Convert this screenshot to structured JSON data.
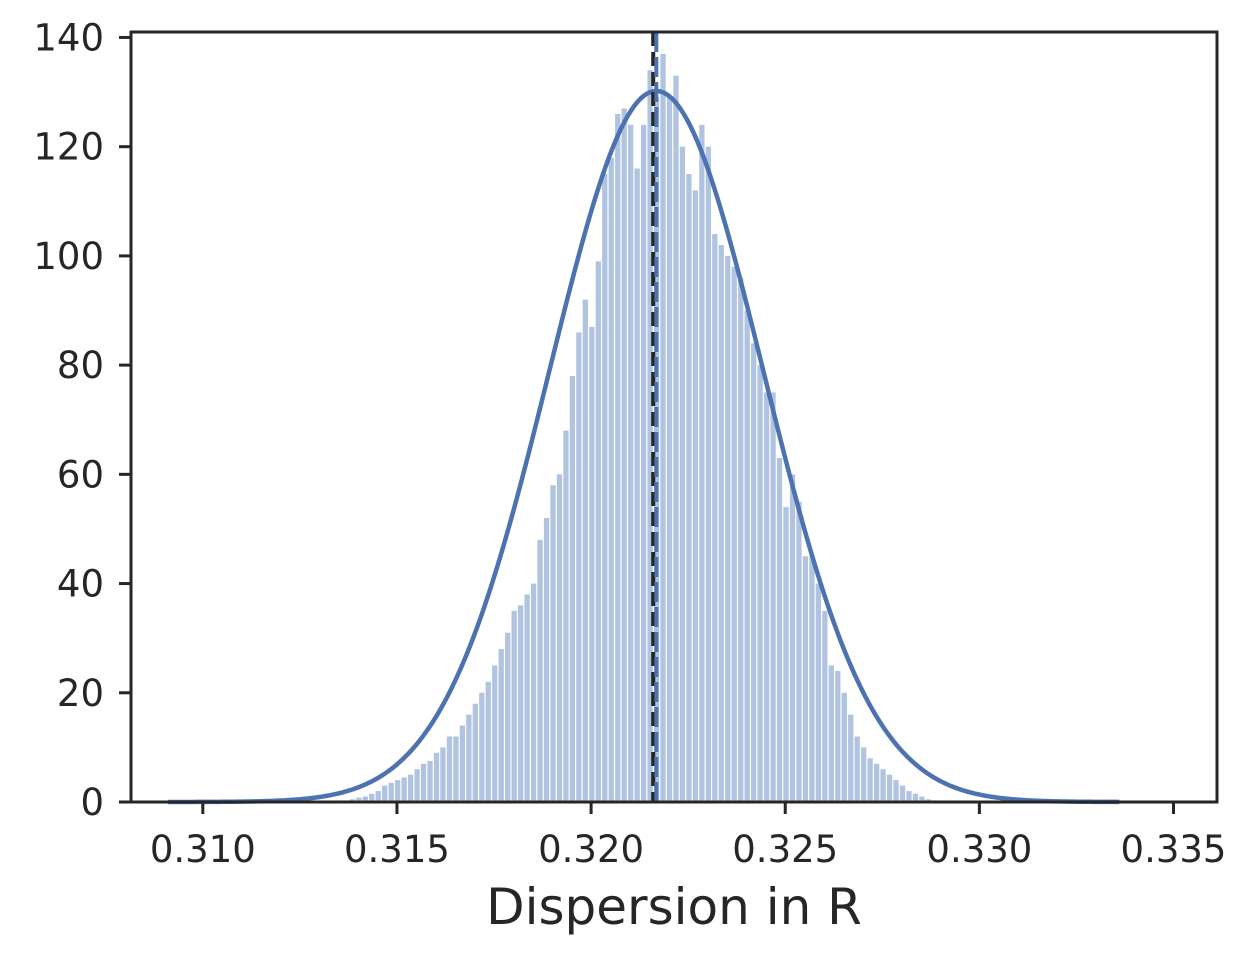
{
  "chart_data": {
    "type": "bar",
    "subtype": "histogram-with-kde",
    "title": "",
    "xlabel": "Dispersion in R",
    "ylabel": "",
    "xlim": [
      0.30815,
      0.33612
    ],
    "ylim": [
      0,
      141
    ],
    "x_ticks": [
      0.31,
      0.315,
      0.32,
      0.325,
      0.33,
      0.335
    ],
    "x_tick_labels": [
      "0.310",
      "0.315",
      "0.320",
      "0.325",
      "0.330",
      "0.335"
    ],
    "y_ticks": [
      0,
      20,
      40,
      60,
      80,
      100,
      120,
      140
    ],
    "y_tick_labels": [
      "0",
      "20",
      "40",
      "60",
      "80",
      "100",
      "120",
      "140"
    ],
    "grid": false,
    "bin_start": 0.3091,
    "bin_width": 0.0001667,
    "counts": [
      0.3,
      0,
      0,
      0,
      0,
      0,
      0,
      0,
      0,
      0,
      0,
      0,
      0,
      0,
      0,
      0,
      0,
      0,
      0,
      0,
      0,
      0,
      0,
      0,
      0,
      0,
      0.3,
      0.3,
      0.5,
      0.8,
      1,
      1.5,
      2,
      3,
      3.5,
      4,
      4.5,
      5,
      6,
      7,
      7.5,
      9,
      10,
      12,
      12,
      14,
      16,
      18,
      20,
      22,
      25,
      28,
      31,
      35,
      36,
      38,
      40,
      48,
      52,
      58,
      60,
      68,
      78,
      86,
      92,
      87,
      99,
      115,
      118,
      126,
      127,
      124,
      116,
      124,
      134,
      129,
      137,
      129,
      133,
      120,
      115,
      112,
      124,
      120,
      104,
      102,
      100,
      98,
      96,
      90,
      84,
      80,
      75,
      75,
      63,
      54,
      60,
      55,
      45,
      45,
      40,
      35,
      25,
      24,
      20,
      16,
      12,
      10,
      8,
      7,
      6,
      5,
      4,
      3,
      2,
      1.5,
      1,
      0.5,
      0.3,
      0,
      0,
      0,
      0,
      0,
      0,
      0,
      0,
      0,
      0,
      0,
      0,
      0,
      0,
      0,
      0,
      0,
      0,
      0,
      0,
      0,
      0,
      0,
      0,
      0,
      0,
      0,
      0.3
    ],
    "kde": {
      "mean": 0.32168,
      "peak": 130.2,
      "sd": 0.002755
    },
    "vlines": [
      {
        "x": 0.3216,
        "style": "black-dashed"
      },
      {
        "x": 0.32168,
        "style": "blue-dashed"
      }
    ],
    "colors": {
      "bars": "#b0c3e0",
      "kde": "#4c72b0",
      "median_line": "#262626",
      "mean_line": "#4c72b0",
      "axes": "#262626"
    }
  }
}
